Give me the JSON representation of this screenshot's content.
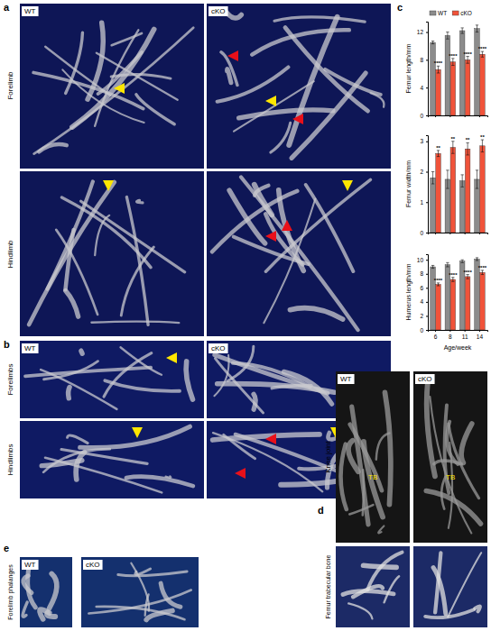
{
  "figure": {
    "panel_labels": [
      "a",
      "b",
      "c",
      "d",
      "e"
    ],
    "a": {
      "columns": [
        "WT",
        "cKO"
      ],
      "rows": [
        "Forelimb",
        "Hindlimb"
      ]
    },
    "b": {
      "columns": [
        "WT",
        "cKO"
      ],
      "rows": [
        "Forelimbs",
        "Hindlimbs"
      ]
    },
    "d": {
      "columns": [
        "WT",
        "cKO"
      ],
      "rows": [
        "Knee joint",
        "Femur trabecular bone"
      ],
      "marks": [
        "TB",
        "TB"
      ]
    },
    "e": {
      "columns": [
        "WT",
        "cKO"
      ],
      "rows": [
        "Forelimb phalanges"
      ]
    }
  },
  "chart_data": [
    {
      "type": "bar",
      "y_label": "Femur length/mm",
      "categories": [
        "6",
        "8",
        "11",
        "14"
      ],
      "ylim": [
        0,
        13.5
      ],
      "yticks": [
        0,
        4,
        8,
        12
      ],
      "tick_labels": "y",
      "legend": "top-left",
      "series": [
        {
          "name": "WT",
          "color": "#8c8c8c",
          "values": [
            10.5,
            11.5,
            12.2,
            12.5
          ],
          "errors": [
            0.2,
            0.5,
            0.4,
            0.5
          ]
        },
        {
          "name": "cKO",
          "color": "#f0533a",
          "values": [
            6.6,
            7.7,
            8.0,
            8.8
          ],
          "errors": [
            0.5,
            0.5,
            0.5,
            0.4
          ],
          "annotations": [
            "****",
            "****",
            "****",
            "****"
          ]
        }
      ]
    },
    {
      "type": "bar",
      "y_label": "Femur width/mm",
      "categories": [
        "6",
        "8",
        "11",
        "14"
      ],
      "ylim": [
        0,
        3.2
      ],
      "yticks": [
        0,
        1,
        2,
        3
      ],
      "tick_labels": "y",
      "series": [
        {
          "color": "#8c8c8c",
          "values": [
            1.8,
            1.75,
            1.7,
            1.75
          ],
          "errors": [
            0.2,
            0.3,
            0.2,
            0.3
          ]
        },
        {
          "color": "#f0533a",
          "values": [
            2.6,
            2.8,
            2.75,
            2.85
          ],
          "errors": [
            0.1,
            0.2,
            0.2,
            0.2
          ],
          "annotations": [
            "**",
            "**",
            "**",
            "**"
          ]
        }
      ]
    },
    {
      "type": "bar",
      "y_label": "Humerus length/mm",
      "x_label": "Age/week",
      "categories": [
        "6",
        "8",
        "11",
        "14"
      ],
      "ylim": [
        0,
        10.8
      ],
      "yticks": [
        0,
        2,
        4,
        6,
        8,
        10
      ],
      "series": [
        {
          "color": "#8c8c8c",
          "values": [
            9.0,
            9.3,
            9.8,
            10.1
          ],
          "errors": [
            0.2,
            0.3,
            0.2,
            0.2
          ]
        },
        {
          "color": "#f0533a",
          "values": [
            6.5,
            7.2,
            7.6,
            8.2
          ],
          "errors": [
            0.2,
            0.3,
            0.3,
            0.3
          ],
          "annotations": [
            "****",
            "****",
            "****",
            "****"
          ]
        }
      ]
    }
  ]
}
